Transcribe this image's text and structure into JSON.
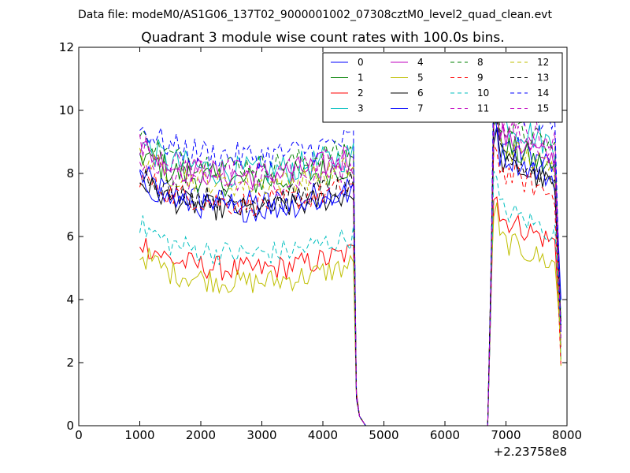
{
  "chart_data": {
    "type": "line",
    "supertitle": "Data file: modeM0/AS1G06_137T02_9000001002_07308cztM0_level2_quad_clean.evt",
    "title": "Quadrant 3 module wise count rates with 100.0s bins.",
    "xlabel": "",
    "ylabel": "",
    "x_offset_label": "+2.23758e8",
    "xlim": [
      0,
      8000
    ],
    "ylim": [
      0,
      12
    ],
    "x_ticks": [
      0,
      1000,
      2000,
      3000,
      4000,
      5000,
      6000,
      7000,
      8000
    ],
    "x_tick_labels": [
      "0",
      "1000",
      "2000",
      "3000",
      "4000",
      "5000",
      "6000",
      "7000",
      "8000"
    ],
    "y_ticks": [
      0,
      2,
      4,
      6,
      8,
      10,
      12
    ],
    "y_tick_labels": [
      "0",
      "2",
      "4",
      "6",
      "8",
      "10",
      "12"
    ],
    "legend_position": "top-right",
    "legend_columns": 4,
    "colors": {
      "blue": "#0000ff",
      "green": "#008000",
      "red": "#ff0000",
      "cyan": "#00bfbf",
      "magenta": "#bf00bf",
      "olive": "#bfbf00",
      "black": "#000000"
    },
    "gap_interval": [
      4700,
      6700
    ],
    "series": [
      {
        "name": "0",
        "color": "#0000ff",
        "dash": "solid",
        "base": 7.6,
        "amp": 0.45,
        "late": 9.1
      },
      {
        "name": "1",
        "color": "#008000",
        "dash": "solid",
        "base": 8.3,
        "amp": 0.5,
        "late": 9.0
      },
      {
        "name": "2",
        "color": "#ff0000",
        "dash": "solid",
        "base": 5.5,
        "amp": 0.4,
        "late": 6.7
      },
      {
        "name": "3",
        "color": "#00bfbf",
        "dash": "solid",
        "base": 8.6,
        "amp": 0.5,
        "late": 9.8
      },
      {
        "name": "4",
        "color": "#bf00bf",
        "dash": "solid",
        "base": 8.5,
        "amp": 0.45,
        "late": 9.3
      },
      {
        "name": "5",
        "color": "#bfbf00",
        "dash": "solid",
        "base": 5.1,
        "amp": 0.4,
        "late": 6.0
      },
      {
        "name": "6",
        "color": "#000000",
        "dash": "solid",
        "base": 7.4,
        "amp": 0.4,
        "late": 8.5
      },
      {
        "name": "7",
        "color": "#0000ff",
        "dash": "solid",
        "base": 7.4,
        "amp": 0.4,
        "late": 8.7
      },
      {
        "name": "8",
        "color": "#008000",
        "dash": "dashed",
        "base": 8.8,
        "amp": 0.4,
        "late": 9.7
      },
      {
        "name": "9",
        "color": "#ff0000",
        "dash": "dashed",
        "base": 7.6,
        "amp": 0.4,
        "late": 8.2
      },
      {
        "name": "10",
        "color": "#00bfbf",
        "dash": "dashed",
        "base": 6.0,
        "amp": 0.4,
        "late": 7.0
      },
      {
        "name": "11",
        "color": "#bf00bf",
        "dash": "dashed",
        "base": 8.6,
        "amp": 0.4,
        "late": 9.9
      },
      {
        "name": "12",
        "color": "#bfbf00",
        "dash": "dashed",
        "base": 8.2,
        "amp": 0.4,
        "late": 9.0
      },
      {
        "name": "13",
        "color": "#000000",
        "dash": "dashed",
        "base": 7.7,
        "amp": 0.4,
        "late": 8.7
      },
      {
        "name": "14",
        "color": "#0000ff",
        "dash": "dashed",
        "base": 9.1,
        "amp": 0.45,
        "late": 10.4
      },
      {
        "name": "15",
        "color": "#bf00bf",
        "dash": "dashed",
        "base": 8.2,
        "amp": 0.4,
        "late": 9.5
      }
    ]
  }
}
